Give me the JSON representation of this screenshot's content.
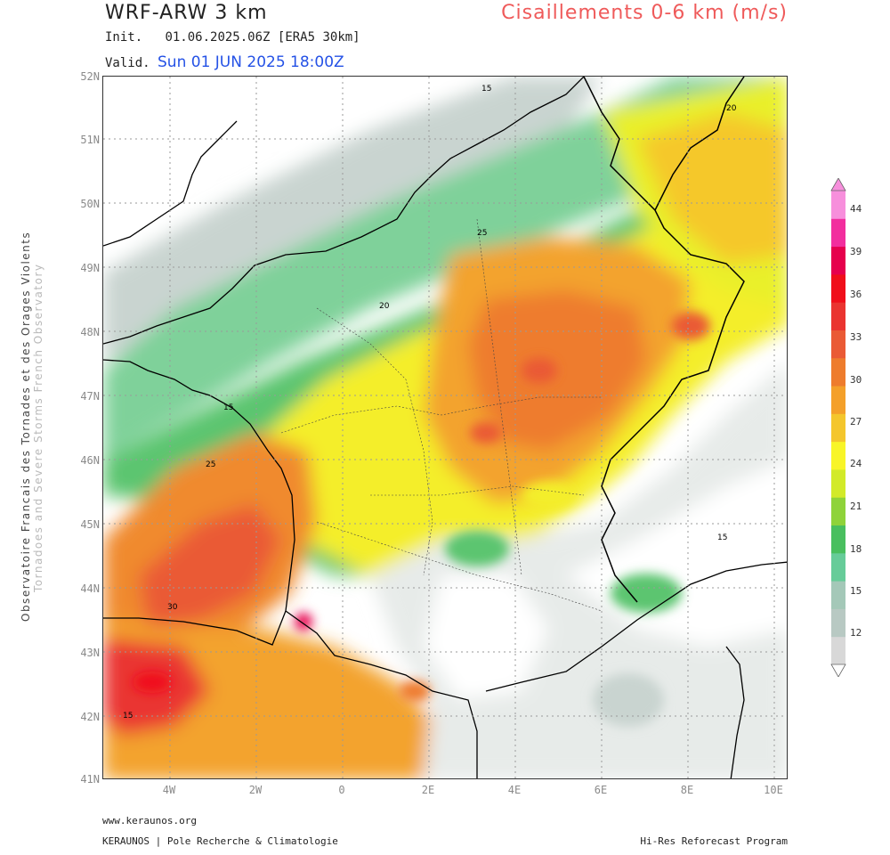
{
  "header": {
    "model": "WRF-ARW 3 km",
    "parameter": "Cisaillements 0-6 km (m/s)",
    "init_prefix": "Init.",
    "init_value": "01.06.2025.06Z [ERA5 30km]",
    "valid_prefix": "Valid.",
    "valid_value": "Sun 01 JUN 2025 18:00Z"
  },
  "side_text": {
    "line1": "Observatoire Francais des Tornades et des Orages Violents",
    "line2": "Tornadoes and Severe Storms French Observatory"
  },
  "map": {
    "region": "France",
    "lat_labels": [
      "52N",
      "51N",
      "50N",
      "49N",
      "48N",
      "47N",
      "46N",
      "45N",
      "44N",
      "43N",
      "42N",
      "41N"
    ],
    "lon_labels": [
      "4W",
      "2W",
      "0",
      "2E",
      "4E",
      "6E",
      "8E",
      "10E"
    ],
    "contour_labels": [
      "15",
      "20",
      "25",
      "30"
    ],
    "legend": {
      "ticks": [
        "44",
        "39",
        "36",
        "33",
        "30",
        "27",
        "24",
        "21",
        "18",
        "15",
        "12"
      ],
      "colors": [
        "#d8d8d8",
        "#b8c9c3",
        "#a4c8b8",
        "#66cc99",
        "#49bf5f",
        "#8fd33a",
        "#d2ea29",
        "#f8f528",
        "#f4c62d",
        "#f4a02a",
        "#ee7c2d",
        "#ea5a35",
        "#ea3430",
        "#f00f1a",
        "#e6004d",
        "#f22e9e",
        "#f78fdc"
      ]
    }
  },
  "footer": {
    "website": "www.keraunos.org",
    "org": "KERAUNOS | Pole Recherche & Climatologie",
    "program": "Hi-Res Reforecast Program"
  }
}
